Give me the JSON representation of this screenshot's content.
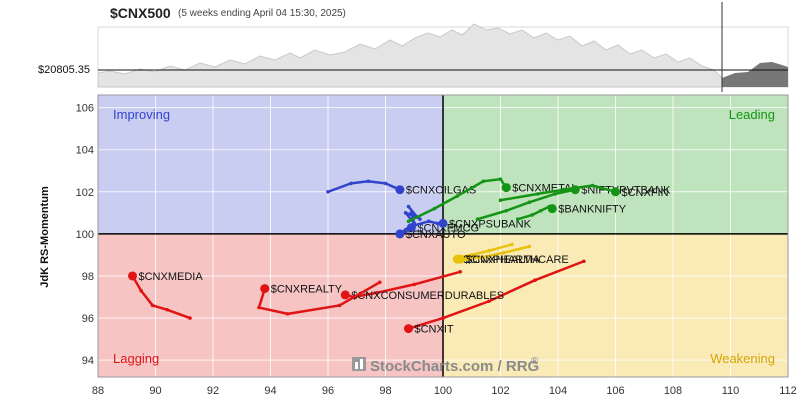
{
  "header": {
    "symbol": "$CNX500",
    "subtitle": "(5 weeks ending April 04 15:30, 2025)",
    "price_label": "$20805.35"
  },
  "watermark": {
    "text": "StockCharts.com / RRG",
    "reg": "®"
  },
  "colors": {
    "improving": "#c9cdf2",
    "leading": "#bfe3bc",
    "lagging": "#f7c4c4",
    "weakening": "#f9eab6",
    "blue": "#3344cc",
    "green": "#149414",
    "red": "#e01414",
    "yellow": "#e8c20a"
  },
  "chart_data": {
    "type": "scatter",
    "title": "$CNX500",
    "subtitle": "(5 weeks ending April 04 15:30, 2025)",
    "xlabel": "",
    "ylabel": "JdK RS-Momentum",
    "xlim": [
      88,
      112
    ],
    "ylim": [
      93.2,
      106.6
    ],
    "xticks": [
      88,
      90,
      92,
      94,
      96,
      98,
      100,
      102,
      104,
      106,
      108,
      110,
      112
    ],
    "yticks": [
      94,
      96,
      98,
      100,
      102,
      104,
      106
    ],
    "center": [
      100,
      100
    ],
    "grid": true,
    "quadrants": {
      "improving": "Improving",
      "leading": "Leading",
      "lagging": "Lagging",
      "weakening": "Weakening"
    },
    "series": [
      {
        "name": "$CNXOILGAS",
        "color": "blue",
        "x": [
          96.0,
          96.8,
          97.4,
          98.0,
          98.5
        ],
        "y": [
          102.0,
          102.4,
          102.5,
          102.4,
          102.1
        ]
      },
      {
        "name": "$CNXFMCG",
        "color": "blue",
        "x": [
          98.8,
          99.1,
          98.7,
          99.0,
          98.9
        ],
        "y": [
          101.3,
          100.8,
          101.0,
          100.5,
          100.3
        ]
      },
      {
        "name": "$CNXAUTO",
        "color": "blue",
        "x": [
          99.2,
          98.9,
          99.0,
          98.7,
          98.5
        ],
        "y": [
          100.7,
          101.0,
          100.5,
          100.2,
          100.0
        ]
      },
      {
        "name": "$CNXPSUBANK",
        "color": "blue",
        "x": [
          98.7,
          99.0,
          99.5,
          99.8,
          100.0
        ],
        "y": [
          100.1,
          100.4,
          100.6,
          100.5,
          100.5
        ]
      },
      {
        "name": "$CNXMETAL",
        "color": "green",
        "x": [
          98.8,
          99.7,
          100.5,
          101.4,
          102.0,
          102.2
        ],
        "y": [
          100.6,
          101.2,
          101.8,
          102.5,
          102.6,
          102.2
        ]
      },
      {
        "name": "$NIFTYPVTBANK",
        "color": "green",
        "x": [
          101.2,
          102.2,
          103.0,
          103.9,
          104.6
        ],
        "y": [
          100.7,
          101.1,
          101.5,
          101.9,
          102.1
        ]
      },
      {
        "name": "$CNXFIN",
        "color": "green",
        "x": [
          102.0,
          103.3,
          104.2,
          105.2,
          106.0
        ],
        "y": [
          101.6,
          101.9,
          102.1,
          102.3,
          102.0
        ]
      },
      {
        "name": "$BANKNIFTY",
        "color": "green",
        "x": [
          102.6,
          103.1,
          103.4,
          103.7,
          103.8
        ],
        "y": [
          100.7,
          100.9,
          101.1,
          101.3,
          101.2
        ]
      },
      {
        "name": "$CNXPHARMA",
        "color": "yellow",
        "x": [
          102.4,
          101.6,
          101.0,
          100.6,
          100.5
        ],
        "y": [
          99.5,
          99.2,
          99.0,
          98.9,
          98.8
        ]
      },
      {
        "name": "$CNXHEALTHCARE",
        "color": "yellow",
        "x": [
          103.0,
          102.1,
          101.4,
          100.8,
          100.6
        ],
        "y": [
          99.4,
          99.1,
          98.9,
          98.8,
          98.8
        ]
      },
      {
        "name": "$CNXIT",
        "color": "red",
        "x": [
          104.9,
          103.2,
          101.6,
          100.0,
          98.8
        ],
        "y": [
          98.7,
          97.8,
          96.8,
          96.0,
          95.5
        ]
      },
      {
        "name": "$CNXCONSUMERDURABLES",
        "color": "red",
        "x": [
          100.6,
          99.0,
          97.7,
          96.9,
          96.6
        ],
        "y": [
          98.2,
          97.6,
          97.2,
          97.0,
          97.1
        ]
      },
      {
        "name": "$CNXREALTY",
        "color": "red",
        "x": [
          97.8,
          96.4,
          94.6,
          93.6,
          93.8
        ],
        "y": [
          97.7,
          96.6,
          96.2,
          96.5,
          97.4
        ]
      },
      {
        "name": "$CNXMEDIA",
        "color": "red",
        "x": [
          91.2,
          90.4,
          89.9,
          89.5,
          89.2
        ],
        "y": [
          96.0,
          96.4,
          96.6,
          97.3,
          98.0
        ]
      }
    ]
  }
}
